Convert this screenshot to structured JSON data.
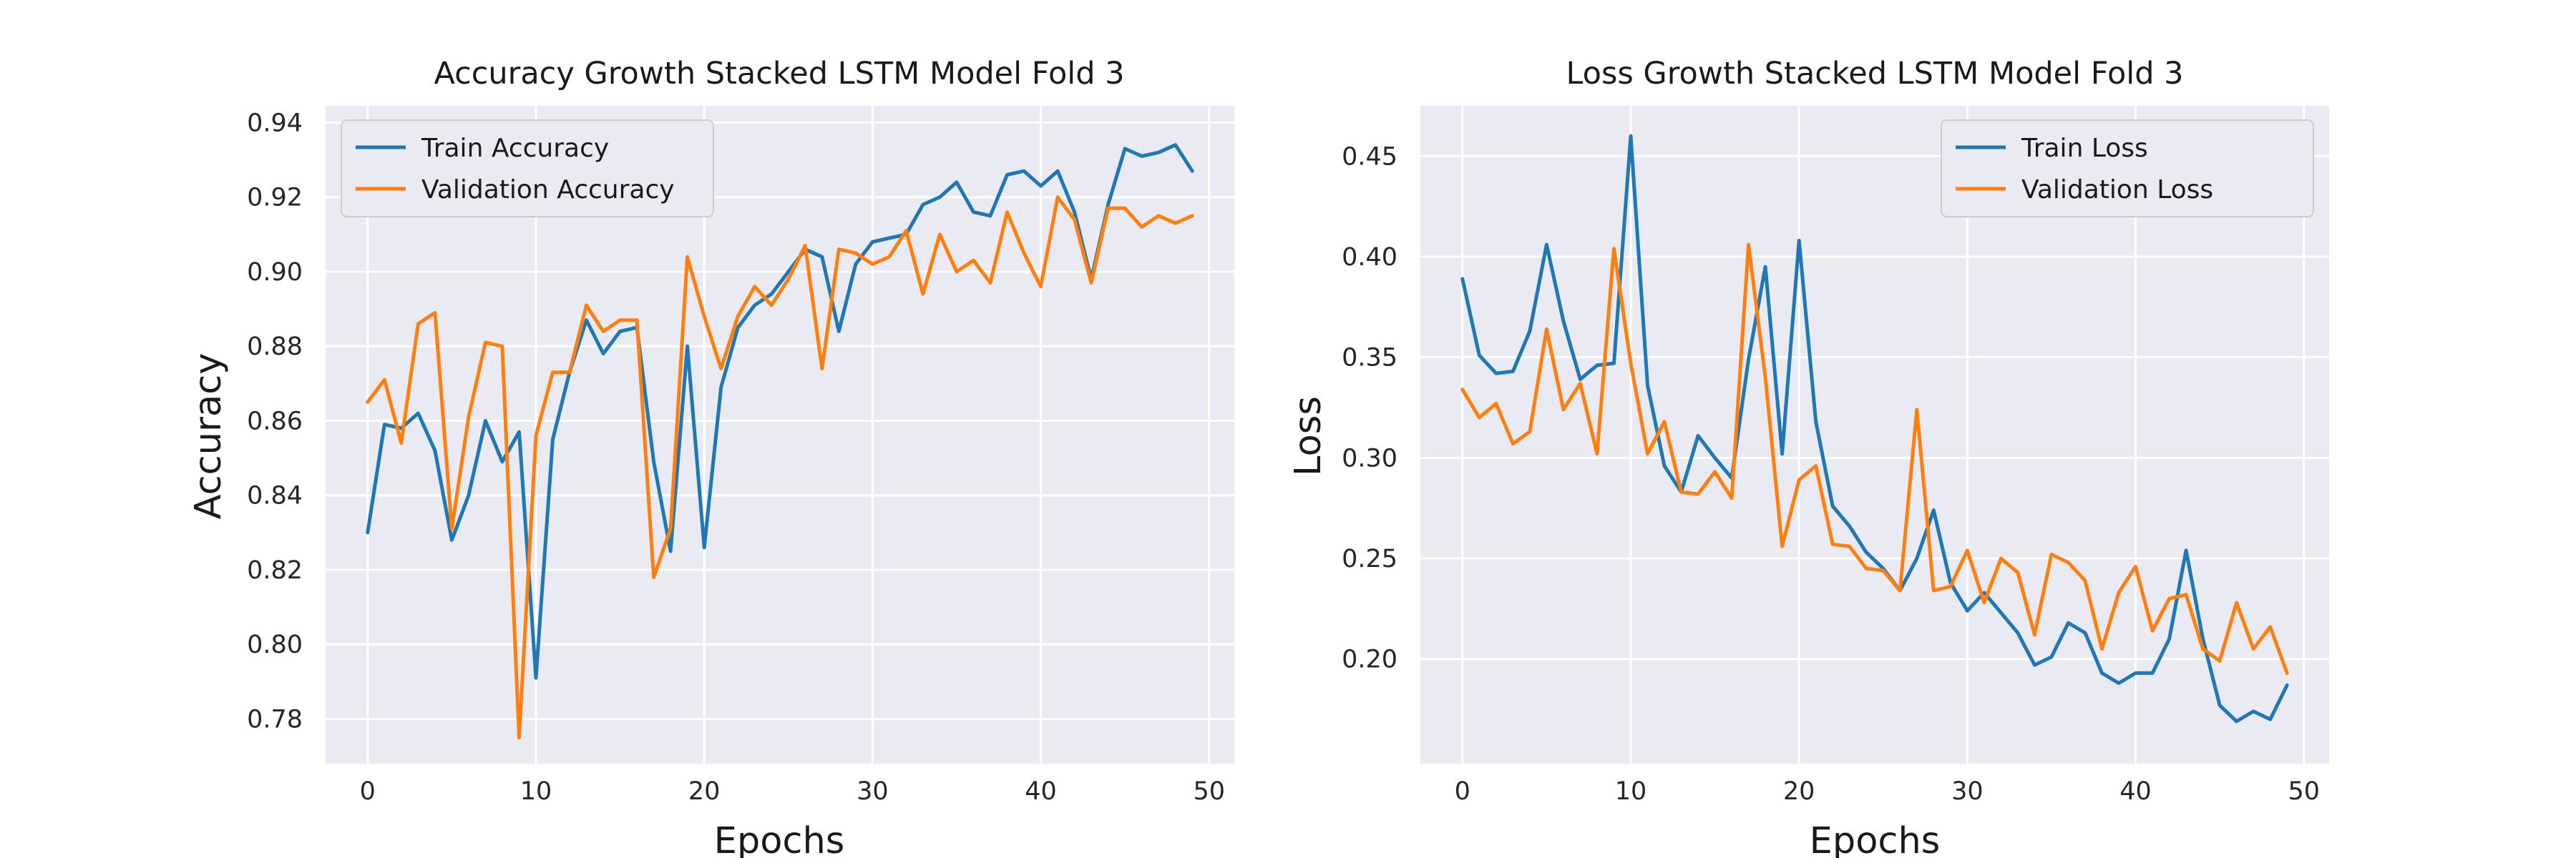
{
  "chart_data": [
    {
      "type": "line",
      "title": "Accuracy Growth Stacked LSTM Model Fold 3",
      "xlabel": "Epochs",
      "ylabel": "Accuracy",
      "xlim": [
        -2.5,
        51.5
      ],
      "ylim": [
        0.768,
        0.9445
      ],
      "xticks": [
        0,
        10,
        20,
        30,
        40,
        50
      ],
      "yticks": [
        0.78,
        0.8,
        0.82,
        0.84,
        0.86,
        0.88,
        0.9,
        0.92,
        0.94
      ],
      "ytick_labels": [
        "0.78",
        "0.80",
        "0.82",
        "0.84",
        "0.86",
        "0.88",
        "0.90",
        "0.92",
        "0.94"
      ],
      "legend": "upper left",
      "grid": true,
      "x": [
        0,
        1,
        2,
        3,
        4,
        5,
        6,
        7,
        8,
        9,
        10,
        11,
        12,
        13,
        14,
        15,
        16,
        17,
        18,
        19,
        20,
        21,
        22,
        23,
        24,
        25,
        26,
        27,
        28,
        29,
        30,
        31,
        32,
        33,
        34,
        35,
        36,
        37,
        38,
        39,
        40,
        41,
        42,
        43,
        44,
        45,
        46,
        47,
        48,
        49
      ],
      "series": [
        {
          "name": "Train Accuracy",
          "color": "#1f77b4",
          "values": [
            0.83,
            0.859,
            0.858,
            0.862,
            0.852,
            0.828,
            0.84,
            0.86,
            0.849,
            0.857,
            0.791,
            0.855,
            0.873,
            0.887,
            0.878,
            0.884,
            0.885,
            0.849,
            0.825,
            0.88,
            0.826,
            0.869,
            0.885,
            0.891,
            0.894,
            0.9,
            0.906,
            0.904,
            0.884,
            0.902,
            0.908,
            0.909,
            0.91,
            0.918,
            0.92,
            0.924,
            0.916,
            0.915,
            0.926,
            0.927,
            0.923,
            0.927,
            0.916,
            0.898,
            0.918,
            0.933,
            0.931,
            0.932,
            0.934,
            0.927
          ]
        },
        {
          "name": "Validation Accuracy",
          "color": "#ff7f0e",
          "values": [
            0.865,
            0.871,
            0.854,
            0.886,
            0.889,
            0.831,
            0.861,
            0.881,
            0.88,
            0.775,
            0.856,
            0.873,
            0.873,
            0.891,
            0.884,
            0.887,
            0.887,
            0.818,
            0.831,
            0.904,
            0.888,
            0.874,
            0.888,
            0.896,
            0.891,
            0.898,
            0.907,
            0.874,
            0.906,
            0.905,
            0.902,
            0.904,
            0.911,
            0.894,
            0.91,
            0.9,
            0.903,
            0.897,
            0.916,
            0.905,
            0.896,
            0.92,
            0.914,
            0.897,
            0.917,
            0.917,
            0.912,
            0.915,
            0.913,
            0.915
          ]
        }
      ]
    },
    {
      "type": "line",
      "title": "Loss Growth Stacked LSTM Model Fold 3",
      "xlabel": "Epochs",
      "ylabel": "Loss",
      "xlim": [
        -2.5,
        51.5
      ],
      "ylim": [
        0.148,
        0.475
      ],
      "xticks": [
        0,
        10,
        20,
        30,
        40,
        50
      ],
      "yticks": [
        0.2,
        0.25,
        0.3,
        0.35,
        0.4,
        0.45
      ],
      "ytick_labels": [
        "0.20",
        "0.25",
        "0.30",
        "0.35",
        "0.40",
        "0.45"
      ],
      "legend": "upper right",
      "grid": true,
      "x": [
        0,
        1,
        2,
        3,
        4,
        5,
        6,
        7,
        8,
        9,
        10,
        11,
        12,
        13,
        14,
        15,
        16,
        17,
        18,
        19,
        20,
        21,
        22,
        23,
        24,
        25,
        26,
        27,
        28,
        29,
        30,
        31,
        32,
        33,
        34,
        35,
        36,
        37,
        38,
        39,
        40,
        41,
        42,
        43,
        44,
        45,
        46,
        47,
        48,
        49
      ],
      "series": [
        {
          "name": "Train Loss",
          "color": "#1f77b4",
          "values": [
            0.389,
            0.351,
            0.342,
            0.343,
            0.363,
            0.406,
            0.368,
            0.339,
            0.346,
            0.347,
            0.46,
            0.336,
            0.296,
            0.283,
            0.311,
            0.3,
            0.29,
            0.349,
            0.395,
            0.302,
            0.408,
            0.318,
            0.276,
            0.266,
            0.253,
            0.245,
            0.234,
            0.25,
            0.274,
            0.238,
            0.224,
            0.233,
            0.223,
            0.213,
            0.197,
            0.201,
            0.218,
            0.213,
            0.193,
            0.188,
            0.193,
            0.193,
            0.21,
            0.254,
            0.21,
            0.177,
            0.169,
            0.174,
            0.17,
            0.187
          ]
        },
        {
          "name": "Validation Loss",
          "color": "#ff7f0e",
          "values": [
            0.334,
            0.32,
            0.327,
            0.307,
            0.313,
            0.364,
            0.324,
            0.337,
            0.302,
            0.404,
            0.347,
            0.302,
            0.318,
            0.283,
            0.282,
            0.293,
            0.28,
            0.406,
            0.34,
            0.256,
            0.289,
            0.296,
            0.257,
            0.256,
            0.245,
            0.244,
            0.234,
            0.324,
            0.234,
            0.236,
            0.254,
            0.228,
            0.25,
            0.243,
            0.212,
            0.252,
            0.248,
            0.239,
            0.205,
            0.233,
            0.246,
            0.214,
            0.23,
            0.232,
            0.205,
            0.199,
            0.228,
            0.205,
            0.216,
            0.193
          ]
        }
      ]
    }
  ]
}
